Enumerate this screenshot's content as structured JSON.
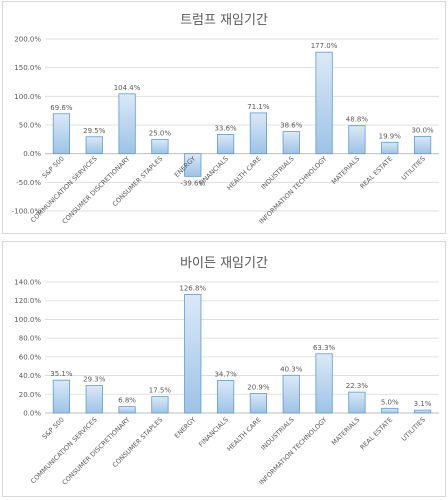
{
  "chart_data": [
    {
      "type": "bar",
      "title": "트럼프 재임기간",
      "categories": [
        "S&P 500",
        "COMMUNICATION SERVICES",
        "CONSUMER DISCRETIONARY",
        "CONSUMER STAPLES",
        "ENERGY",
        "FINANCIALS",
        "HEALTH CARE",
        "INDUSTRIALS",
        "INFORMATION TECHNOLOGY",
        "MATERIALS",
        "REAL ESTATE",
        "UTILITIES"
      ],
      "values": [
        69.6,
        29.5,
        104.4,
        25.0,
        -39.6,
        33.6,
        71.1,
        38.6,
        177.0,
        48.8,
        19.9,
        30.0
      ],
      "value_labels": [
        "69.6%",
        "29.5%",
        "104.4%",
        "25.0%",
        "-39.6%",
        "33.6%",
        "71.1%",
        "38.6%",
        "177.0%",
        "48.8%",
        "19.9%",
        "30.0%"
      ],
      "ylim": [
        -100,
        200
      ],
      "yticks": [
        -100,
        -50,
        0,
        50,
        100,
        150,
        200
      ],
      "ytick_labels": [
        "-100.0%",
        "-50.0%",
        "0.0%",
        "50.0%",
        "100.0%",
        "150.0%",
        "200.0%"
      ],
      "grid": true,
      "bar_color": "#9dc3e6"
    },
    {
      "type": "bar",
      "title": "바이든 재임기간",
      "categories": [
        "S&P 500",
        "COMMUNICATION SERVICES",
        "CONSUMER DISCRETIONARY",
        "CONSUMER STAPLES",
        "ENERGY",
        "FINANCIALS",
        "HEALTH CARE",
        "INDUSTRIALS",
        "INFORMATION TECHNOLOGY",
        "MATERIALS",
        "REAL ESTATE",
        "UTILITIES"
      ],
      "values": [
        35.1,
        29.3,
        6.8,
        17.5,
        126.8,
        34.7,
        20.9,
        40.3,
        63.3,
        22.3,
        5.0,
        3.1
      ],
      "value_labels": [
        "35.1%",
        "29.3%",
        "6.8%",
        "17.5%",
        "126.8%",
        "34.7%",
        "20.9%",
        "40.3%",
        "63.3%",
        "22.3%",
        "5.0%",
        "3.1%"
      ],
      "ylim": [
        0,
        140
      ],
      "yticks": [
        0,
        20,
        40,
        60,
        80,
        100,
        120,
        140
      ],
      "ytick_labels": [
        "0.0%",
        "20.0%",
        "40.0%",
        "60.0%",
        "80.0%",
        "100.0%",
        "120.0%",
        "140.0%"
      ],
      "grid": true,
      "bar_color": "#9dc3e6"
    }
  ]
}
